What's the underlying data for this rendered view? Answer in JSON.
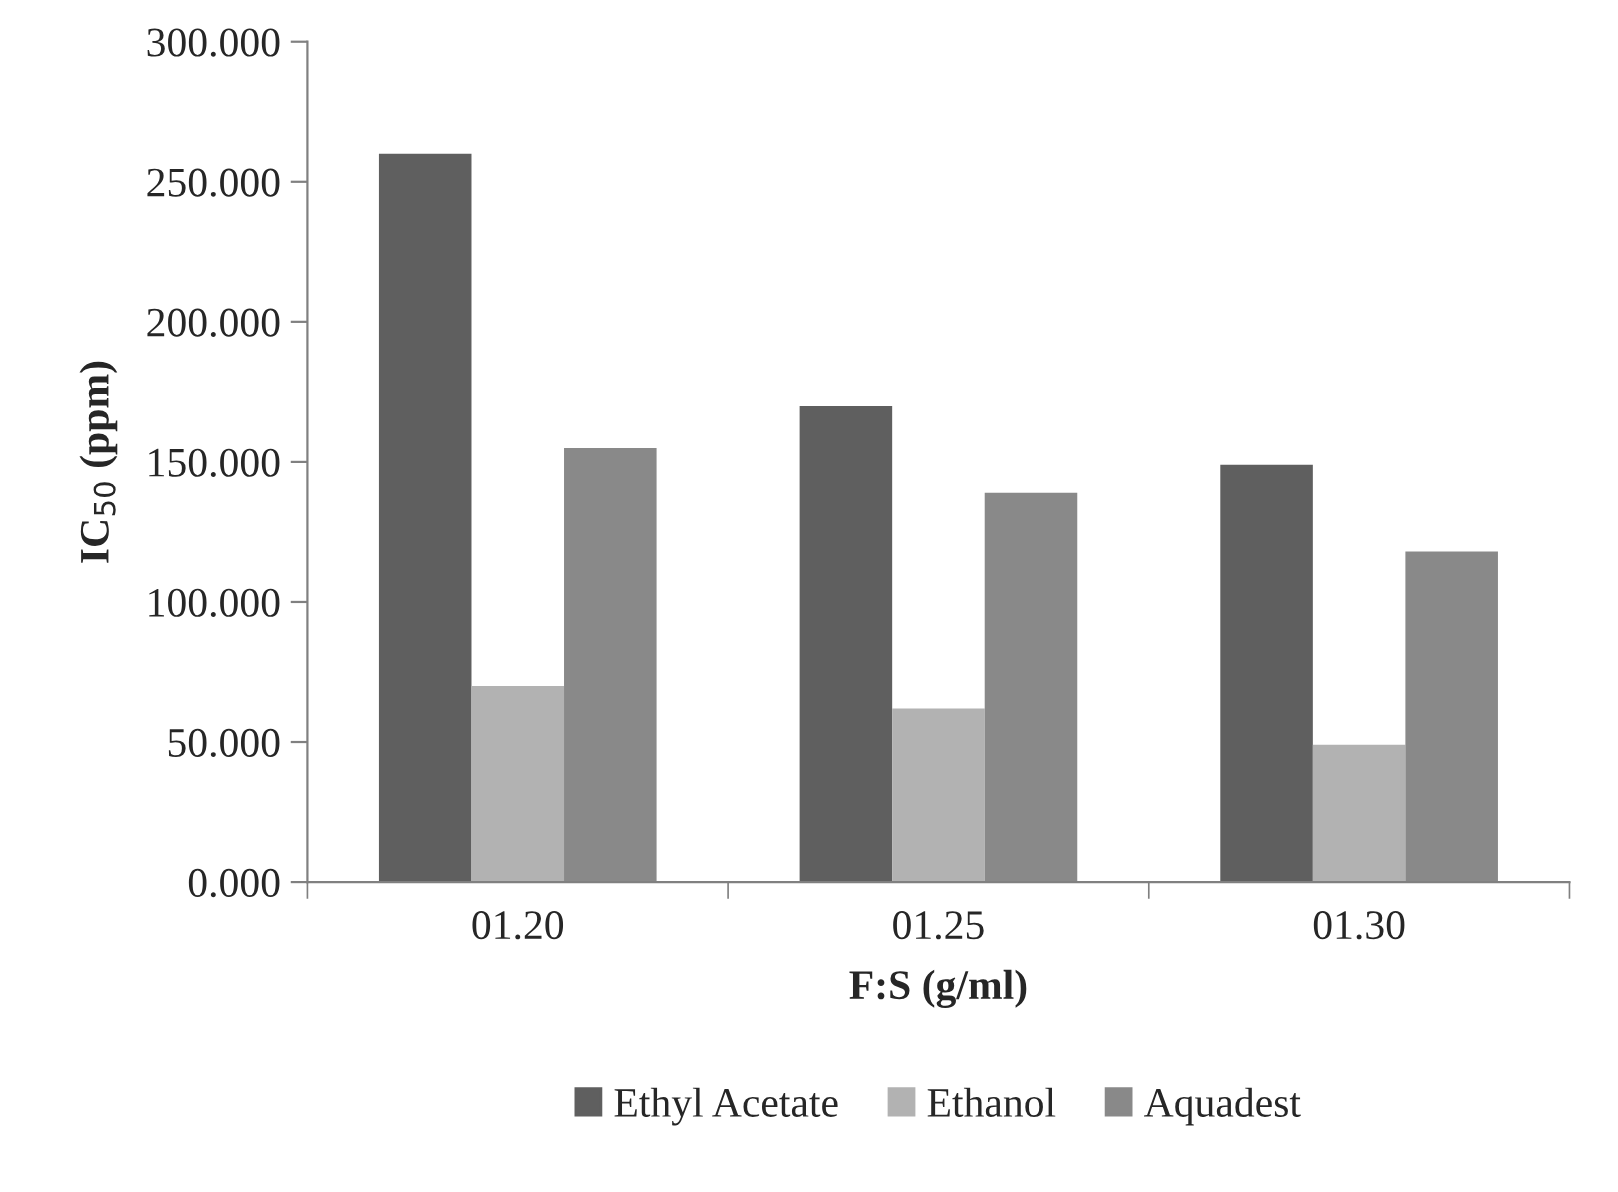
{
  "chart_data": {
    "type": "bar",
    "xlabel": "F:S (g/ml)",
    "ylabel": "IC$_{50}$ (ppm)",
    "categories": [
      "01.20",
      "01.25",
      "01.30"
    ],
    "series": [
      {
        "name": "Ethyl Acetate",
        "color": "#5f5f5f",
        "values": [
          260,
          170,
          149
        ]
      },
      {
        "name": "Ethanol",
        "color": "#b2b2b2",
        "values": [
          70,
          62,
          49
        ]
      },
      {
        "name": "Aquadest",
        "color": "#898989",
        "values": [
          155,
          139,
          118
        ]
      }
    ],
    "ylim": [
      0,
      300
    ],
    "yticks": [
      {
        "value": 0,
        "label": "0.000"
      },
      {
        "value": 50,
        "label": "50.000"
      },
      {
        "value": 100,
        "label": "100.000"
      },
      {
        "value": 150,
        "label": "150.000"
      },
      {
        "value": 200,
        "label": "200.000"
      },
      {
        "value": 250,
        "label": "250.000"
      },
      {
        "value": 300,
        "label": "300.000"
      }
    ],
    "grid": false,
    "legend": "bottom"
  }
}
